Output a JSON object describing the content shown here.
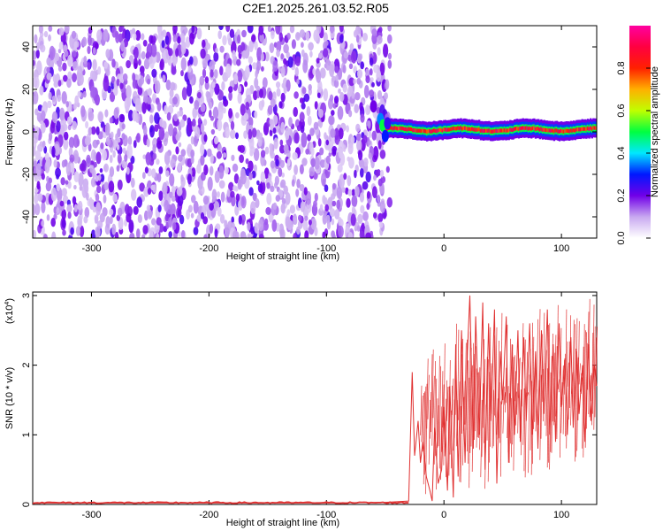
{
  "title": "C2E1.2025.261.03.52.R05",
  "chart_data": [
    {
      "type": "heatmap",
      "name": "spectrogram",
      "xlabel": "Height of straight line (km)",
      "ylabel": "Frequency (Hz)",
      "xlim": [
        -350,
        130
      ],
      "ylim": [
        -50,
        50
      ],
      "xticks": [
        -300,
        -200,
        -100,
        0,
        100
      ],
      "xtick_labels": [
        "-300",
        "-200",
        "-100",
        "0",
        "100"
      ],
      "yticks": [
        -40,
        -20,
        0,
        20,
        40
      ],
      "ytick_labels": [
        "-40",
        "-20",
        "0",
        "20",
        "40"
      ],
      "noise_region_x": [
        -350,
        -50
      ],
      "signal_region_x": [
        -50,
        130
      ],
      "signal_frequency_hz": 1,
      "colorbar": {
        "label": "Normalized spectral amplitude",
        "range": [
          0,
          1
        ],
        "ticks": [
          0.0,
          0.2,
          0.4,
          0.6,
          0.8
        ],
        "tick_labels": [
          "0.0",
          "0.2",
          "0.4",
          "0.6",
          "0.8"
        ],
        "colors": [
          "#ffffff",
          "#c8a8f0",
          "#7000e8",
          "#0018ff",
          "#00e8ff",
          "#00ff40",
          "#c0ff00",
          "#ffb000",
          "#ff2000",
          "#ff0040",
          "#ff00a0"
        ]
      }
    },
    {
      "type": "line",
      "name": "snr",
      "xlabel": "Height of straight line (km)",
      "ylabel": "SNR (10 * v/v)",
      "scale_label": "(x10",
      "scale_exponent": "4",
      "xlim": [
        -350,
        130
      ],
      "ylim": [
        0,
        3.05
      ],
      "xticks": [
        -300,
        -200,
        -100,
        0,
        100
      ],
      "xtick_labels": [
        "-300",
        "-200",
        "-100",
        "0",
        "100"
      ],
      "yticks": [
        0,
        1,
        2,
        3
      ],
      "ytick_labels": [
        "0",
        "1",
        "2",
        "3"
      ],
      "color": "#e03030",
      "series": [
        {
          "name": "SNR",
          "x": [
            -350,
            -300,
            -250,
            -200,
            -150,
            -100,
            -50,
            -30,
            -27,
            -25,
            -22,
            -20,
            -18,
            -15,
            -12,
            -10,
            -8,
            -5,
            -2,
            0,
            3,
            5,
            8,
            10,
            12,
            15,
            18,
            20,
            22,
            25,
            27,
            30,
            33,
            35,
            38,
            40,
            43,
            45,
            48,
            50,
            53,
            55,
            58,
            60,
            63,
            65,
            68,
            70,
            73,
            75,
            78,
            80,
            83,
            85,
            88,
            90,
            93,
            95,
            98,
            100,
            103,
            105,
            108,
            110,
            113,
            115,
            118,
            120,
            123,
            125,
            128,
            130
          ],
          "y": [
            0.02,
            0.02,
            0.02,
            0.02,
            0.02,
            0.02,
            0.03,
            0.05,
            1.9,
            0.7,
            1.2,
            0.6,
            0.9,
            0.4,
            0.2,
            0.05,
            1.1,
            0.3,
            0.5,
            1.4,
            0.2,
            1.7,
            0.1,
            2.3,
            0.4,
            2.5,
            0.6,
            2.2,
            3.0,
            0.8,
            2.7,
            1.0,
            2.9,
            0.5,
            2.6,
            1.2,
            2.8,
            0.3,
            2.2,
            1.5,
            2.7,
            0.6,
            2.3,
            1.0,
            2.5,
            0.9,
            2.4,
            1.2,
            2.6,
            1.0,
            2.2,
            0.8,
            2.5,
            1.3,
            2.8,
            1.0,
            2.3,
            0.9,
            2.6,
            1.4,
            2.1,
            1.0,
            2.4,
            1.1,
            2.2,
            1.3,
            2.0,
            0.9,
            2.3,
            1.2,
            2.0,
            1.7
          ]
        }
      ]
    }
  ]
}
